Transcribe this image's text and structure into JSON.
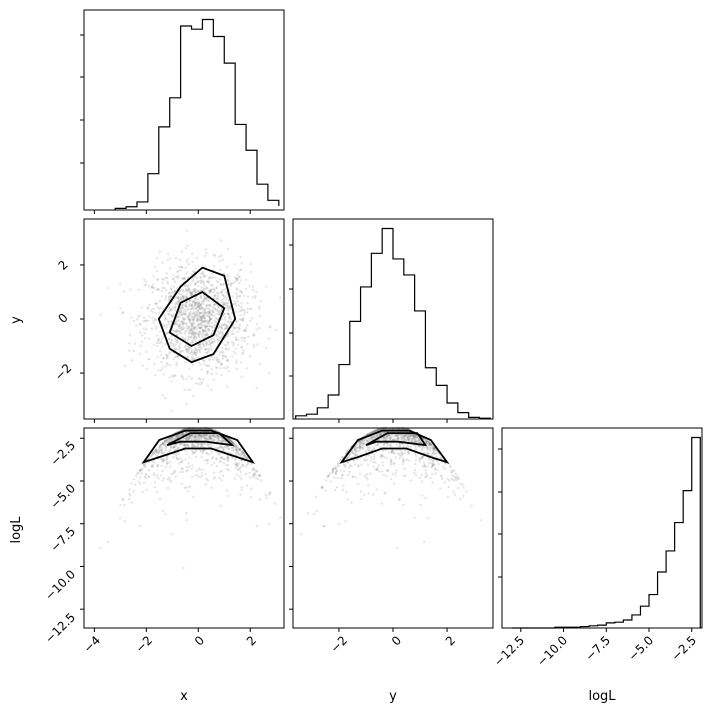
{
  "chart_data": [
    {
      "type": "bar",
      "panel": "x-histogram",
      "xlim": [
        -4.4,
        3.3
      ],
      "bins": [
        -3.2,
        -2.78,
        -2.36,
        -1.94,
        -1.52,
        -1.1,
        -0.68,
        -0.26,
        0.16,
        0.58,
        1.0,
        1.42,
        1.84,
        2.26,
        2.68,
        3.1
      ],
      "counts": [
        2,
        4,
        10,
        45,
        103,
        139,
        228,
        224,
        236,
        215,
        182,
        106,
        74,
        32,
        12,
        5
      ]
    },
    {
      "type": "bar",
      "panel": "y-histogram",
      "xlim": [
        -3.7,
        3.7
      ],
      "bins": [
        -3.6,
        -3.2,
        -2.8,
        -2.4,
        -2.0,
        -1.6,
        -1.2,
        -0.8,
        -0.4,
        0.0,
        0.4,
        0.8,
        1.2,
        1.6,
        2.0,
        2.4,
        2.8,
        3.2,
        3.6
      ],
      "counts": [
        4,
        6,
        14,
        30,
        68,
        122,
        165,
        207,
        238,
        200,
        180,
        135,
        64,
        42,
        20,
        8,
        2,
        1
      ]
    },
    {
      "type": "bar",
      "panel": "logL-histogram",
      "xlim": [
        -13.6,
        -1.9
      ],
      "bins": [
        -13.0,
        -12.5,
        -12.0,
        -11.5,
        -11.0,
        -10.5,
        -10.0,
        -9.5,
        -9.0,
        -8.5,
        -8.0,
        -7.5,
        -7.0,
        -6.5,
        -6.0,
        -5.5,
        -5.0,
        -4.5,
        -4.0,
        -3.5,
        -3.0,
        -2.5,
        -2.0
      ],
      "counts": [
        0,
        0,
        0,
        0,
        0,
        1,
        1,
        1,
        2,
        3,
        4,
        7,
        8,
        11,
        18,
        30,
        46,
        77,
        106,
        145,
        189,
        262
      ]
    },
    {
      "type": "scatter",
      "panel": "y-vs-x",
      "xlim": [
        -4.4,
        3.3
      ],
      "ylim": [
        -3.7,
        3.7
      ],
      "xlabel": "x",
      "ylabel": "y",
      "contours_x": [
        [
          -1.52,
          -0.68,
          0.16,
          1.0,
          1.42,
          0.58,
          -0.26,
          -1.1
        ],
        [
          -0.68,
          0.16,
          1.0,
          0.58,
          -0.26,
          -1.1
        ]
      ],
      "contours_y": [
        [
          0.0,
          1.2,
          1.9,
          1.6,
          0.0,
          -1.3,
          -1.6,
          -1.1
        ],
        [
          0.6,
          1.0,
          0.4,
          -0.6,
          -1.0,
          -0.5
        ]
      ]
    },
    {
      "type": "scatter",
      "panel": "logL-vs-x",
      "xlim": [
        -4.4,
        3.3
      ],
      "ylim": [
        -13.6,
        -1.9
      ],
      "xlabel": "x",
      "ylabel": "logL",
      "contours_x": [
        [
          -2.1,
          -1.5,
          -0.5,
          0.5,
          1.5,
          2.1,
          1.5,
          0.5,
          -0.5,
          -1.5
        ],
        [
          -1.2,
          -0.3,
          0.8,
          1.3,
          0.3,
          -0.7
        ]
      ],
      "contours_y": [
        [
          -3.9,
          -2.6,
          -2.05,
          -2.05,
          -2.6,
          -3.9,
          -3.6,
          -3.1,
          -3.1,
          -3.6
        ],
        [
          -2.9,
          -2.2,
          -2.2,
          -2.9,
          -2.7,
          -2.7
        ]
      ]
    },
    {
      "type": "scatter",
      "panel": "logL-vs-y",
      "xlim": [
        -3.7,
        3.7
      ],
      "ylim": [
        -13.6,
        -1.9
      ],
      "xlabel": "y",
      "ylabel": "logL",
      "contours_x": [
        [
          -1.9,
          -1.3,
          -0.4,
          0.6,
          1.4,
          2.0,
          1.4,
          0.5,
          -0.4,
          -1.3
        ],
        [
          -1.0,
          -0.2,
          0.9,
          1.2,
          0.2,
          -0.6
        ]
      ],
      "contours_y": [
        [
          -3.9,
          -2.6,
          -2.05,
          -2.05,
          -2.6,
          -3.9,
          -3.6,
          -3.1,
          -3.1,
          -3.6
        ],
        [
          -2.9,
          -2.2,
          -2.2,
          -2.9,
          -2.7,
          -2.7
        ]
      ]
    }
  ],
  "ticks": {
    "x": [
      "−4",
      "−2",
      "0",
      "2"
    ],
    "y": [
      "−2",
      "0",
      "2"
    ],
    "logL_left": [
      "−2.5",
      "−5.0",
      "−7.5",
      "−10.0",
      "−12.5"
    ],
    "logL_bottom": [
      "−12.5",
      "−10.0",
      "−7.5",
      "−5.0",
      "−2.5"
    ]
  },
  "axis_labels": {
    "x": "x",
    "y": "y",
    "logL": "logL"
  },
  "colors": {
    "line": "#000000",
    "points": "#888888"
  }
}
